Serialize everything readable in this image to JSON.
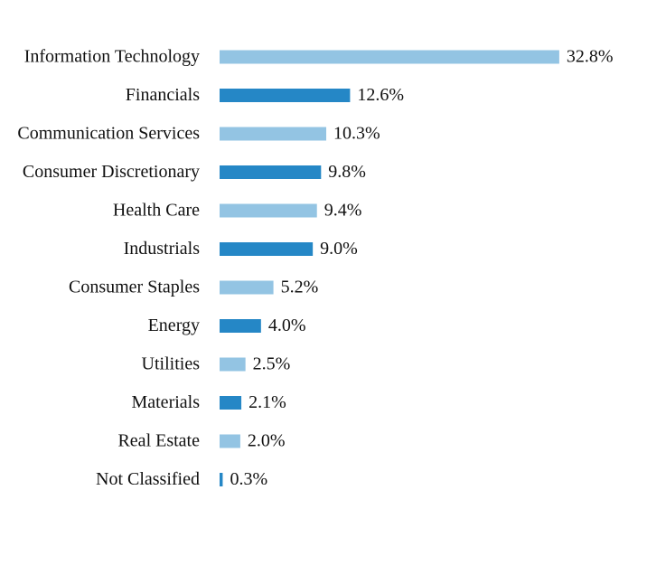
{
  "chart_data": {
    "type": "hbar",
    "categories": [
      "Information Technology",
      "Financials",
      "Communication Services",
      "Consumer Discretionary",
      "Health Care",
      "Industrials",
      "Consumer Staples",
      "Energy",
      "Utilities",
      "Materials",
      "Real Estate",
      "Not Classified"
    ],
    "values": [
      32.8,
      12.6,
      10.3,
      9.8,
      9.4,
      9.0,
      5.2,
      4.0,
      2.5,
      2.1,
      2.0,
      0.3
    ],
    "value_labels": [
      "32.8%",
      "12.6%",
      "10.3%",
      "9.8%",
      "9.4%",
      "9.0%",
      "5.2%",
      "4.0%",
      "2.5%",
      "2.1%",
      "2.0%",
      "0.3%"
    ],
    "colors": [
      "#93c4e3",
      "#2587c6",
      "#93c4e3",
      "#2587c6",
      "#93c4e3",
      "#2587c6",
      "#93c4e3",
      "#2587c6",
      "#93c4e3",
      "#2587c6",
      "#93c4e3",
      "#2587c6"
    ]
  }
}
